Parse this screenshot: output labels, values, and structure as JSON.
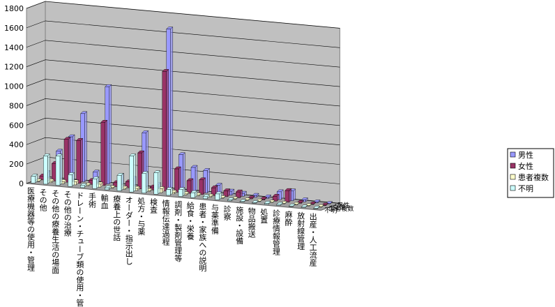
{
  "chart_data": {
    "type": "bar3d",
    "categories": [
      "医療機器等の使用・管理",
      "その他",
      "その他の療養生活の場面",
      "その他の治療",
      "ドレーン・チューブ類の使用・管理",
      "手術",
      "輸血",
      "療養上の世話",
      "オーダー・指示出し",
      "処方・与薬",
      "検査",
      "情報伝達過程",
      "調剤・製剤管理等",
      "給食・栄養",
      "患者・家族への説明",
      "与薬準備",
      "診察",
      "施設・設備",
      "物品搬送",
      "処置",
      "診療情報管理",
      "麻酔",
      "放射線管理",
      "出産・人工流産"
    ],
    "series": [
      {
        "name": "男性",
        "color": "#9999ff",
        "values": [
          60,
          290,
          450,
          700,
          110,
          1000,
          100,
          80,
          560,
          40,
          1650,
          370,
          250,
          230,
          90,
          40,
          30,
          20,
          15,
          80,
          100,
          20,
          10,
          5
        ]
      },
      {
        "name": "女性",
        "color": "#993366",
        "values": [
          40,
          180,
          440,
          440,
          40,
          650,
          40,
          60,
          370,
          30,
          1230,
          240,
          130,
          150,
          80,
          60,
          60,
          10,
          10,
          50,
          120,
          10,
          5,
          5
        ]
      },
      {
        "name": "患者複数",
        "color": "#ffffcc",
        "values": [
          5,
          15,
          20,
          30,
          10,
          30,
          5,
          10,
          20,
          10,
          40,
          15,
          10,
          10,
          10,
          5,
          5,
          5,
          5,
          5,
          5,
          5,
          5,
          5
        ]
      },
      {
        "name": "不明",
        "color": "#ccffff",
        "values": [
          70,
          290,
          300,
          120,
          20,
          100,
          20,
          160,
          370,
          200,
          220,
          60,
          70,
          50,
          20,
          60,
          10,
          5,
          5,
          10,
          10,
          5,
          5,
          5
        ]
      }
    ],
    "ylim": [
      0,
      1800
    ],
    "yticks": [
      0,
      200,
      400,
      600,
      800,
      1000,
      1200,
      1400,
      1600,
      1800
    ],
    "grid": true,
    "legend": "right"
  }
}
